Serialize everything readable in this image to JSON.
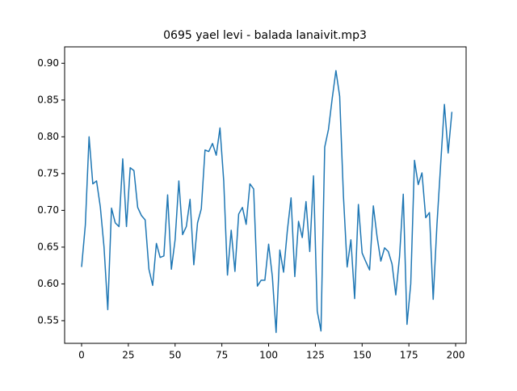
{
  "chart_data": {
    "type": "line",
    "title": "0695 yael levi - balada lanaivit.mp3",
    "x": [
      0,
      2,
      4,
      6,
      8,
      10,
      12,
      14,
      16,
      18,
      20,
      22,
      24,
      26,
      28,
      30,
      32,
      34,
      36,
      38,
      40,
      42,
      44,
      46,
      48,
      50,
      52,
      54,
      56,
      58,
      60,
      62,
      64,
      66,
      68,
      70,
      72,
      74,
      76,
      78,
      80,
      82,
      84,
      86,
      88,
      90,
      92,
      94,
      96,
      98,
      100,
      102,
      104,
      106,
      108,
      110,
      112,
      114,
      116,
      118,
      120,
      122,
      124,
      126,
      128,
      130,
      132,
      134,
      136,
      138,
      140,
      142,
      144,
      146,
      148,
      150,
      152,
      154,
      156,
      158,
      160,
      162,
      164,
      166,
      168,
      170,
      172,
      174,
      176,
      178,
      180,
      182,
      184,
      186,
      188,
      190,
      192,
      194,
      196,
      198
    ],
    "series": [
      {
        "color": "#1f77b4",
        "values": [
          0.623,
          0.68,
          0.8,
          0.736,
          0.74,
          0.705,
          0.65,
          0.565,
          0.703,
          0.683,
          0.678,
          0.77,
          0.678,
          0.758,
          0.754,
          0.704,
          0.693,
          0.687,
          0.62,
          0.598,
          0.655,
          0.636,
          0.638,
          0.721,
          0.62,
          0.66,
          0.74,
          0.667,
          0.678,
          0.715,
          0.626,
          0.683,
          0.702,
          0.782,
          0.78,
          0.791,
          0.775,
          0.812,
          0.74,
          0.612,
          0.673,
          0.617,
          0.695,
          0.704,
          0.681,
          0.736,
          0.729,
          0.597,
          0.605,
          0.605,
          0.654,
          0.61,
          0.534,
          0.646,
          0.616,
          0.672,
          0.717,
          0.61,
          0.685,
          0.663,
          0.712,
          0.644,
          0.747,
          0.563,
          0.536,
          0.786,
          0.81,
          0.852,
          0.89,
          0.855,
          0.72,
          0.623,
          0.66,
          0.58,
          0.708,
          0.642,
          0.63,
          0.619,
          0.706,
          0.664,
          0.631,
          0.649,
          0.644,
          0.627,
          0.585,
          0.637,
          0.722,
          0.545,
          0.6,
          0.768,
          0.735,
          0.751,
          0.69,
          0.697,
          0.579,
          0.68,
          0.763,
          0.844,
          0.778,
          0.834
        ]
      }
    ],
    "xlim": [
      -9.07,
      205.6
    ],
    "xticks": [
      0,
      25,
      50,
      75,
      100,
      125,
      150,
      175,
      200
    ],
    "ylim": [
      0.5192,
      0.9223
    ],
    "yticks": [
      0.55,
      {
        "value": 0.6,
        "label": "0.60"
      },
      0.65,
      {
        "value": 0.7,
        "label": "0.70"
      },
      0.75,
      {
        "value": 0.8,
        "label": "0.80"
      },
      0.85,
      {
        "value": 0.9,
        "label": "0.90"
      }
    ]
  }
}
